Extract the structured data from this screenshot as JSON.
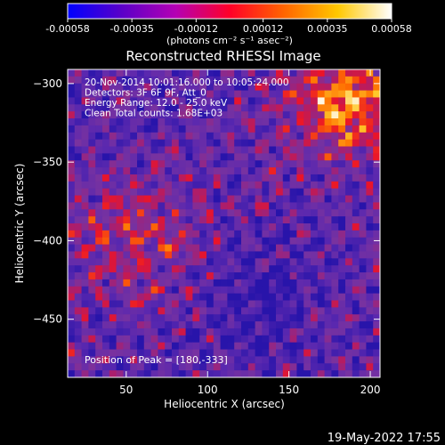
{
  "colorbar": {
    "ticks": [
      "-0.00058",
      "-0.00035",
      "-0.00012",
      "0.00012",
      "0.00035",
      "0.00058"
    ],
    "tick_values": [
      -0.00058,
      -0.00035,
      -0.00012,
      0.00012,
      0.00035,
      0.00058
    ],
    "label": "(photons cm⁻² s⁻¹ asec⁻²)",
    "colors": [
      "#0000ff",
      "#5a00c8",
      "#b400b4",
      "#ff0028",
      "#ff6400",
      "#ffc800",
      "#ffffff"
    ]
  },
  "chart_data": {
    "type": "heatmap",
    "title": "Reconstructed RHESSI Image",
    "xlabel": "Heliocentric X (arcsec)",
    "ylabel": "Heliocentric Y (arcsec)",
    "xlim": [
      14,
      206
    ],
    "ylim": [
      -487,
      -291
    ],
    "xticks": [
      50,
      100,
      150,
      200
    ],
    "yticks": [
      -300,
      -350,
      -400,
      -450
    ],
    "info_lines": [
      "20-Nov-2014 10:01:16.000 to 10:05:24.000",
      "Detectors: 3F 6F 9F, Att_0",
      "Energy Range: 12.0 - 25.0 keV",
      "Clean     Total counts: 1.68E+03"
    ],
    "peak_label": "Position of Peak = [180,-333]",
    "peak": [
      180,
      -333
    ],
    "value_range": [
      -0.00058,
      0.00058
    ],
    "grid": false
  },
  "footer": {
    "timestamp": "19-May-2022 17:55"
  }
}
